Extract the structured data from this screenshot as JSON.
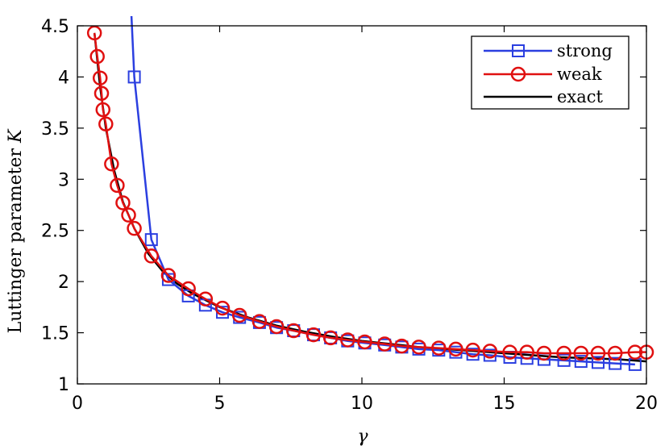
{
  "chart_data": {
    "type": "line",
    "xlabel": "γ",
    "ylabel": "Luttinger parameter K",
    "xlim": [
      0,
      20
    ],
    "ylim": [
      1,
      4.5
    ],
    "xticks": [
      0,
      5,
      10,
      15,
      20
    ],
    "xtick_labels": [
      "0",
      "5",
      "10",
      "15",
      "20"
    ],
    "yticks": [
      1,
      1.5,
      2,
      2.5,
      3,
      3.5,
      4,
      4.5
    ],
    "ytick_labels": [
      "1",
      "1.5",
      "2",
      "2.5",
      "3",
      "3.5",
      "4",
      "4.5"
    ],
    "grid": false,
    "legend_position": "top-right",
    "series": [
      {
        "name": "strong",
        "color": "#2b3fe0",
        "marker": "square",
        "x": [
          1.9,
          2.0,
          2.6,
          3.2,
          3.9,
          4.5,
          5.1,
          5.7,
          6.4,
          7.0,
          7.6,
          8.3,
          8.9,
          9.5,
          10.1,
          10.8,
          11.4,
          12.0,
          12.7,
          13.3,
          13.9,
          14.5,
          15.2,
          15.8,
          16.4,
          17.1,
          17.7,
          18.3,
          18.9,
          19.6
        ],
        "y": [
          4.6,
          4.0,
          2.41,
          2.02,
          1.86,
          1.77,
          1.7,
          1.65,
          1.6,
          1.55,
          1.52,
          1.48,
          1.45,
          1.42,
          1.4,
          1.38,
          1.36,
          1.34,
          1.33,
          1.31,
          1.29,
          1.28,
          1.26,
          1.25,
          1.24,
          1.23,
          1.22,
          1.21,
          1.2,
          1.19
        ],
        "marker_start": 1
      },
      {
        "name": "weak",
        "color": "#e01010",
        "marker": "circle",
        "x": [
          0.6,
          0.7,
          0.8,
          0.85,
          0.9,
          1.0,
          1.2,
          1.4,
          1.6,
          1.8,
          2.0,
          2.6,
          3.2,
          3.9,
          4.5,
          5.1,
          5.7,
          6.4,
          7.0,
          7.6,
          8.3,
          8.9,
          9.5,
          10.1,
          10.8,
          11.4,
          12.0,
          12.7,
          13.3,
          13.9,
          14.5,
          15.2,
          15.8,
          16.4,
          17.1,
          17.7,
          18.3,
          18.9,
          19.6,
          20.0
        ],
        "y": [
          4.43,
          4.2,
          3.99,
          3.84,
          3.68,
          3.54,
          3.15,
          2.94,
          2.77,
          2.65,
          2.52,
          2.25,
          2.06,
          1.93,
          1.83,
          1.74,
          1.67,
          1.61,
          1.56,
          1.52,
          1.48,
          1.45,
          1.43,
          1.41,
          1.39,
          1.37,
          1.36,
          1.35,
          1.34,
          1.33,
          1.32,
          1.31,
          1.31,
          1.3,
          1.3,
          1.3,
          1.3,
          1.3,
          1.31,
          1.31
        ],
        "marker_start": 0
      },
      {
        "name": "exact",
        "color": "#000000",
        "marker": "none",
        "x": [
          0.6,
          0.8,
          1.0,
          1.3,
          1.6,
          2.0,
          2.5,
          3.0,
          3.5,
          4.0,
          5.0,
          6.0,
          7.0,
          8.0,
          9.0,
          10.0,
          11.0,
          12.0,
          13.0,
          14.0,
          15.0,
          16.0,
          17.0,
          18.0,
          19.0,
          20.0
        ],
        "y": [
          4.43,
          3.9,
          3.5,
          3.08,
          2.78,
          2.52,
          2.27,
          2.1,
          1.98,
          1.89,
          1.75,
          1.65,
          1.57,
          1.51,
          1.46,
          1.42,
          1.39,
          1.36,
          1.34,
          1.32,
          1.3,
          1.28,
          1.26,
          1.25,
          1.24,
          1.22
        ]
      }
    ]
  }
}
